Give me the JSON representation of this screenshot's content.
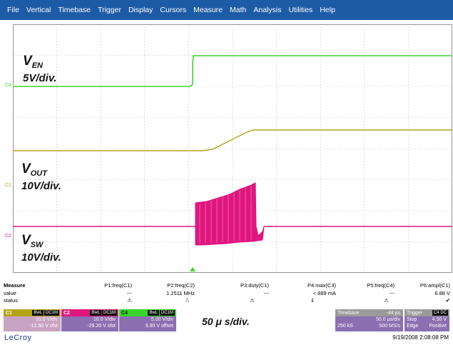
{
  "menu": [
    "File",
    "Vertical",
    "Timebase",
    "Trigger",
    "Display",
    "Cursors",
    "Measure",
    "Math",
    "Analysis",
    "Utilities",
    "Help"
  ],
  "colors": {
    "menubar": "#1e5ba6",
    "c1": "#b5a316",
    "c2": "#e0157e",
    "c4": "#38d62a"
  },
  "waveform_labels": {
    "ven_sym": "V",
    "ven_sub": "EN",
    "ven_div": "5V/div.",
    "vout_sym": "V",
    "vout_sub": "OUT",
    "vout_div": "10V/div.",
    "vsw_sym": "V",
    "vsw_sub": "SW",
    "vsw_div": "10V/div."
  },
  "channel_tags": {
    "c4": "C4",
    "c1": "C1",
    "c2": "C2"
  },
  "measure": {
    "title": "Measure",
    "row_labels": [
      "value",
      "status"
    ],
    "params": [
      {
        "name": "P1:freq(C1)",
        "value": "---",
        "status": "⚠"
      },
      {
        "name": "P2:freq(C2)",
        "value": "1.2511 MHz",
        "status": "⎍"
      },
      {
        "name": "P3:duty(C1)",
        "value": "---",
        "status": "⚠"
      },
      {
        "name": "P4:max(C3)",
        "value": "< 889 mA",
        "status": "⇓"
      },
      {
        "name": "P5:freq(C4)",
        "value": "---",
        "status": "⚠"
      },
      {
        "name": "P6:ampl(C1)",
        "value": "6.88 V",
        "status": "✔"
      }
    ]
  },
  "channels": [
    {
      "id": "C1",
      "badge1": "BwL",
      "badge2": "DC1M",
      "line1": "10.0 V/div",
      "line2": "-12.50 V ofst"
    },
    {
      "id": "C2",
      "badge1": "BwL",
      "badge2": "DC1M",
      "line1": "10.0 V/div",
      "line2": "-29.20 V ofst"
    },
    {
      "id": "C4",
      "badge1": "BwL",
      "badge2": "DC1M",
      "line1": "5.00 V/div",
      "line2": "9.90 V offset"
    }
  ],
  "time_div": "50 μ s/div.",
  "timebase": {
    "label": "Timebase",
    "delay": "-44 μs",
    "rate": "50.0 μs/div",
    "samples": "250 kS",
    "srate": "500 MS/s"
  },
  "trigger": {
    "label": "Trigger",
    "badge": "C4 DC",
    "mode": "Stop",
    "level": "4.50 V",
    "type": "Edge",
    "slope": "Positive"
  },
  "brand": "LeCroy",
  "datetime": "9/19/2008 2:08:08 PM"
}
